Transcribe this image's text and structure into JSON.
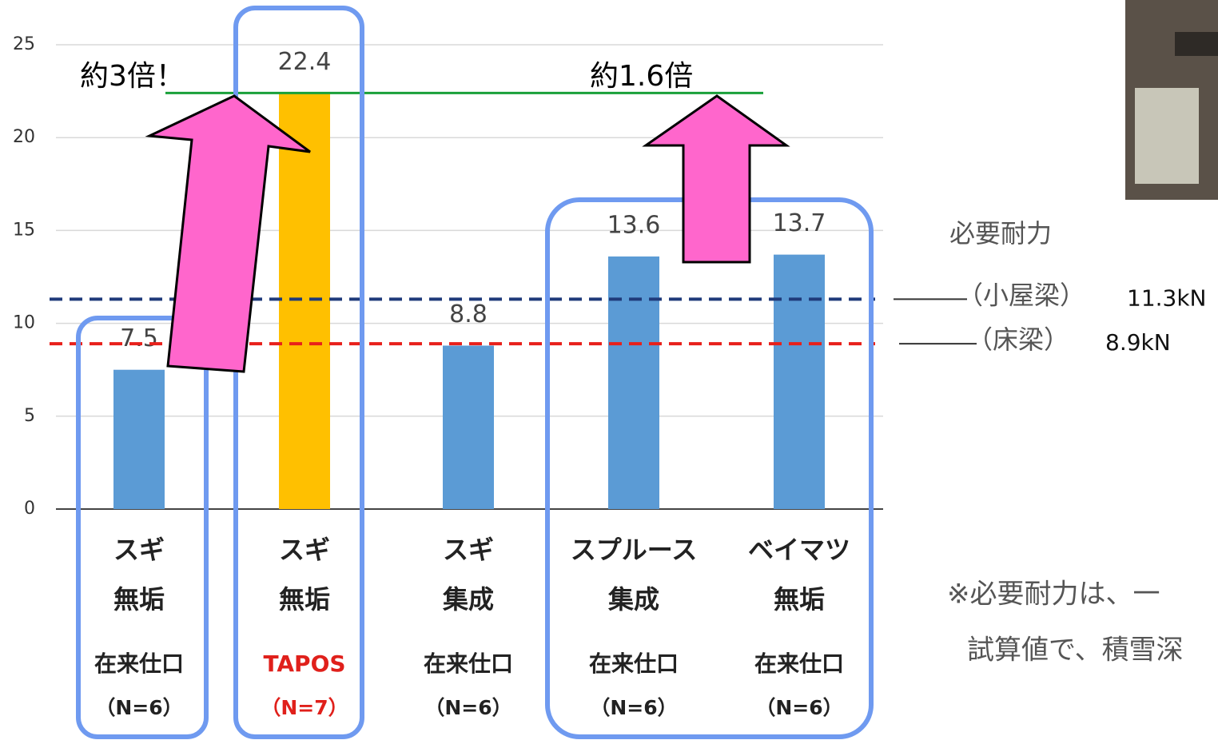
{
  "chart_data": {
    "type": "bar",
    "categories": [
      [
        "スギ",
        "無垢",
        "在来仕口",
        "（N=6）"
      ],
      [
        "スギ",
        "無垢",
        "TAPOS",
        "（N=7）"
      ],
      [
        "スギ",
        "集成",
        "在来仕口",
        "（N=6）"
      ],
      [
        "スプルース",
        "集成",
        "在来仕口",
        "（N=6）"
      ],
      [
        "ベイマツ",
        "無垢",
        "在来仕口",
        "（N=6）"
      ]
    ],
    "values": [
      7.5,
      22.4,
      8.8,
      13.6,
      13.7
    ],
    "colors": [
      "#5b9bd5",
      "#ffc000",
      "#5b9bd5",
      "#5b9bd5",
      "#5b9bd5"
    ],
    "highlight_category": 1,
    "highlight_color": "#e0201b",
    "ylim": [
      0,
      25
    ],
    "yticks": [
      0,
      5,
      10,
      15,
      20,
      25
    ],
    "grid": true,
    "reference_title": "必要耐力",
    "reference_lines": [
      {
        "name": "（小屋梁）",
        "value": 11.3,
        "value_label": "11.3kN",
        "color": "#1f3a7a"
      },
      {
        "name": "（床梁）",
        "value": 8.9,
        "value_label": "8.9kN",
        "color": "#e8201b"
      }
    ],
    "annotations": [
      "約3倍！",
      "約1.6倍"
    ],
    "footnote": [
      "※必要耐力は、一",
      "試算値で、積雪深"
    ]
  }
}
